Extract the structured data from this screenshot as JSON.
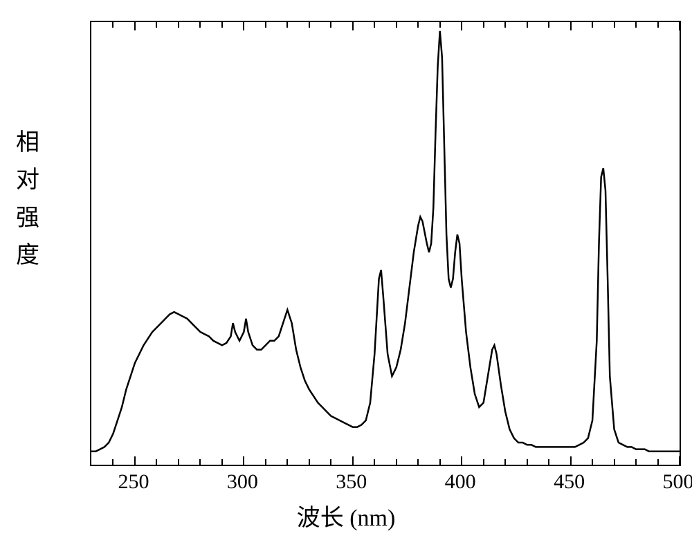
{
  "chart": {
    "type": "line",
    "xlabel": "波长 (nm)",
    "ylabel_chars": [
      "相",
      "对",
      "强",
      "度"
    ],
    "xlim": [
      230,
      500
    ],
    "ylim": [
      0,
      100
    ],
    "x_major_ticks": [
      250,
      300,
      350,
      400,
      450,
      500
    ],
    "x_minor_ticks": [
      240,
      260,
      270,
      280,
      290,
      310,
      320,
      330,
      340,
      360,
      370,
      380,
      390,
      410,
      420,
      430,
      440,
      460,
      470,
      480,
      490
    ],
    "line_color": "#000000",
    "line_width": 2.5,
    "background_color": "#ffffff",
    "border_color": "#000000",
    "tick_fontsize": 30,
    "label_fontsize": 34,
    "font_family": "SimSun, Times New Roman, serif",
    "data": [
      [
        230,
        3
      ],
      [
        232,
        3
      ],
      [
        234,
        3.5
      ],
      [
        236,
        4
      ],
      [
        238,
        5
      ],
      [
        240,
        7
      ],
      [
        242,
        10
      ],
      [
        244,
        13
      ],
      [
        246,
        17
      ],
      [
        248,
        20
      ],
      [
        250,
        23
      ],
      [
        252,
        25
      ],
      [
        254,
        27
      ],
      [
        256,
        28.5
      ],
      [
        258,
        30
      ],
      [
        260,
        31
      ],
      [
        262,
        32
      ],
      [
        264,
        33
      ],
      [
        266,
        34
      ],
      [
        268,
        34.5
      ],
      [
        270,
        34
      ],
      [
        272,
        33.5
      ],
      [
        274,
        33
      ],
      [
        276,
        32
      ],
      [
        278,
        31
      ],
      [
        280,
        30
      ],
      [
        282,
        29.5
      ],
      [
        284,
        29
      ],
      [
        286,
        28
      ],
      [
        288,
        27.5
      ],
      [
        290,
        27
      ],
      [
        292,
        27.5
      ],
      [
        294,
        29
      ],
      [
        295,
        32
      ],
      [
        296,
        30
      ],
      [
        298,
        28
      ],
      [
        300,
        30
      ],
      [
        301,
        33
      ],
      [
        302,
        30
      ],
      [
        304,
        27
      ],
      [
        306,
        26
      ],
      [
        308,
        26
      ],
      [
        310,
        27
      ],
      [
        312,
        28
      ],
      [
        314,
        28
      ],
      [
        316,
        29
      ],
      [
        318,
        32
      ],
      [
        320,
        35
      ],
      [
        322,
        32
      ],
      [
        324,
        26
      ],
      [
        326,
        22
      ],
      [
        328,
        19
      ],
      [
        330,
        17
      ],
      [
        332,
        15.5
      ],
      [
        334,
        14
      ],
      [
        336,
        13
      ],
      [
        338,
        12
      ],
      [
        340,
        11
      ],
      [
        342,
        10.5
      ],
      [
        344,
        10
      ],
      [
        346,
        9.5
      ],
      [
        348,
        9
      ],
      [
        350,
        8.5
      ],
      [
        352,
        8.5
      ],
      [
        354,
        9
      ],
      [
        356,
        10
      ],
      [
        358,
        14
      ],
      [
        360,
        25
      ],
      [
        362,
        42
      ],
      [
        363,
        44
      ],
      [
        364,
        38
      ],
      [
        366,
        25
      ],
      [
        368,
        20
      ],
      [
        370,
        22
      ],
      [
        372,
        26
      ],
      [
        374,
        32
      ],
      [
        376,
        40
      ],
      [
        378,
        48
      ],
      [
        380,
        54
      ],
      [
        381,
        56
      ],
      [
        382,
        55
      ],
      [
        384,
        50
      ],
      [
        385,
        48
      ],
      [
        386,
        50
      ],
      [
        387,
        58
      ],
      [
        388,
        75
      ],
      [
        389,
        90
      ],
      [
        390,
        98
      ],
      [
        391,
        92
      ],
      [
        392,
        72
      ],
      [
        393,
        52
      ],
      [
        394,
        42
      ],
      [
        395,
        40
      ],
      [
        396,
        42
      ],
      [
        397,
        48
      ],
      [
        398,
        52
      ],
      [
        399,
        50
      ],
      [
        400,
        42
      ],
      [
        402,
        30
      ],
      [
        404,
        22
      ],
      [
        406,
        16
      ],
      [
        408,
        13
      ],
      [
        410,
        14
      ],
      [
        412,
        20
      ],
      [
        414,
        26
      ],
      [
        415,
        27
      ],
      [
        416,
        25
      ],
      [
        418,
        18
      ],
      [
        420,
        12
      ],
      [
        422,
        8
      ],
      [
        424,
        6
      ],
      [
        426,
        5
      ],
      [
        428,
        5
      ],
      [
        430,
        4.5
      ],
      [
        432,
        4.5
      ],
      [
        434,
        4
      ],
      [
        436,
        4
      ],
      [
        438,
        4
      ],
      [
        440,
        4
      ],
      [
        442,
        4
      ],
      [
        444,
        4
      ],
      [
        446,
        4
      ],
      [
        448,
        4
      ],
      [
        450,
        4
      ],
      [
        452,
        4
      ],
      [
        454,
        4.5
      ],
      [
        456,
        5
      ],
      [
        458,
        6
      ],
      [
        460,
        10
      ],
      [
        462,
        28
      ],
      [
        463,
        50
      ],
      [
        464,
        65
      ],
      [
        465,
        67
      ],
      [
        466,
        62
      ],
      [
        467,
        42
      ],
      [
        468,
        20
      ],
      [
        470,
        8
      ],
      [
        472,
        5
      ],
      [
        474,
        4.5
      ],
      [
        476,
        4
      ],
      [
        478,
        4
      ],
      [
        480,
        3.5
      ],
      [
        482,
        3.5
      ],
      [
        484,
        3.5
      ],
      [
        486,
        3
      ],
      [
        488,
        3
      ],
      [
        490,
        3
      ],
      [
        492,
        3
      ],
      [
        494,
        3
      ],
      [
        496,
        3
      ],
      [
        498,
        3
      ],
      [
        500,
        3
      ]
    ]
  }
}
